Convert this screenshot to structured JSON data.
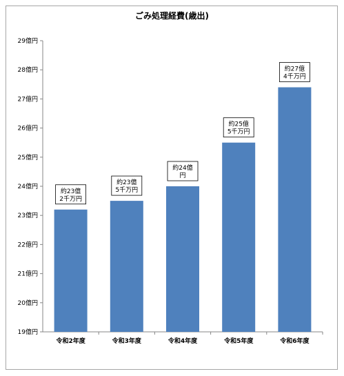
{
  "chart_data": {
    "type": "bar",
    "title": "ごみ処理経費(歳出)",
    "categories": [
      "令和2年度",
      "令和3年度",
      "令和4年度",
      "令和5年度",
      "令和6年度"
    ],
    "values": [
      23.2,
      23.5,
      24.0,
      25.5,
      27.4
    ],
    "data_labels": [
      [
        "約23億",
        "2千万円"
      ],
      [
        "約23億",
        "5千万円"
      ],
      [
        "約24億",
        "円"
      ],
      [
        "約25億",
        "5千万円"
      ],
      [
        "約27億",
        "4千万円"
      ]
    ],
    "ylim": [
      19,
      29
    ],
    "yticks": [
      19,
      20,
      21,
      22,
      23,
      24,
      25,
      26,
      27,
      28,
      29
    ],
    "ytick_labels": [
      "19億円",
      "20億円",
      "21億円",
      "22億円",
      "23億円",
      "24億円",
      "25億円",
      "26億円",
      "27億円",
      "28億円",
      "29億円"
    ],
    "xlabel": "",
    "ylabel": "",
    "grid": false,
    "legend": "none",
    "bar_color": "#4f81bd"
  }
}
